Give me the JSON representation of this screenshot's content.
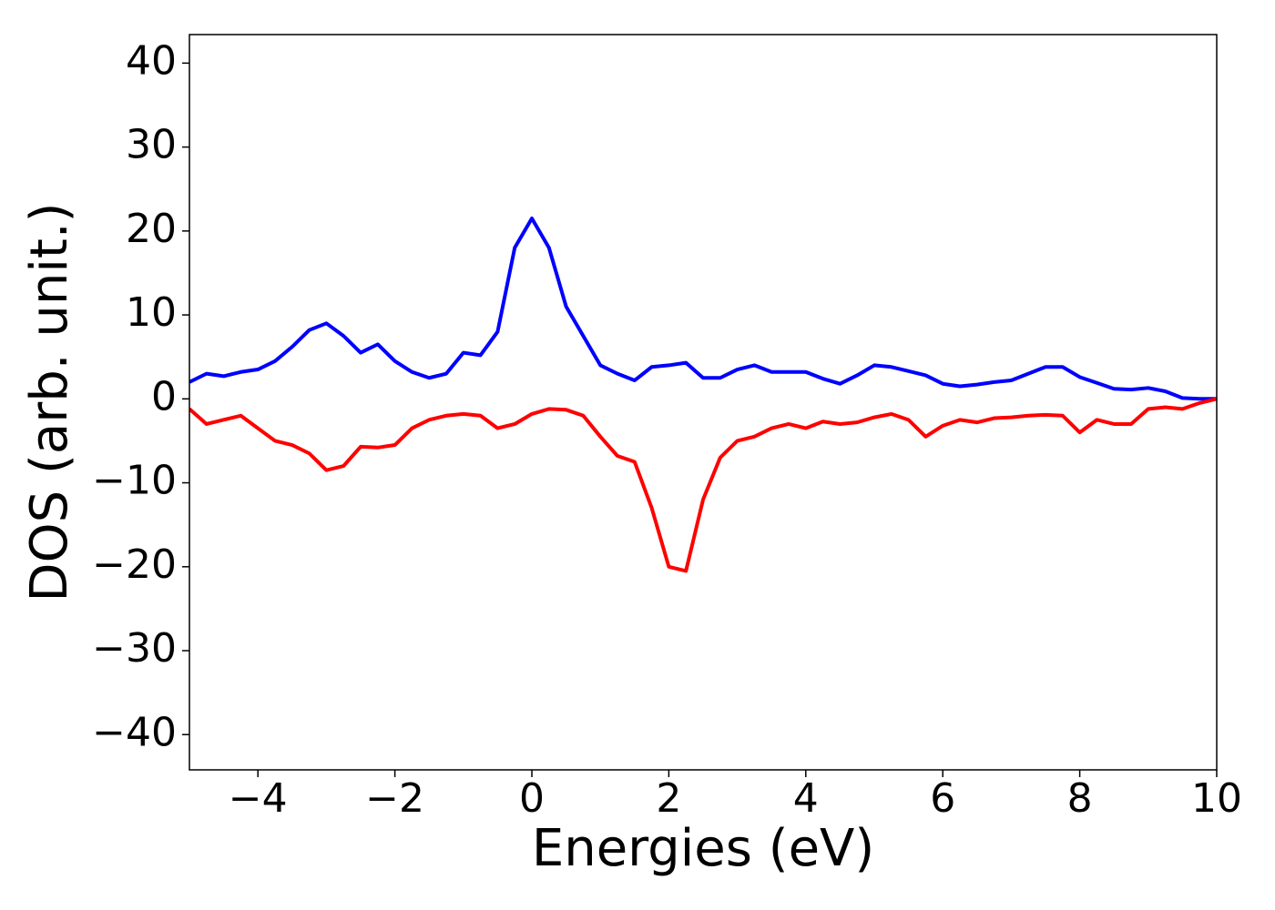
{
  "chart_data": {
    "type": "line",
    "xlabel": "Energies (eV)",
    "ylabel": "DOS (arb. unit.)",
    "x": [
      -5,
      -4.75,
      -4.5,
      -4.25,
      -4,
      -3.75,
      -3.5,
      -3.25,
      -3,
      -2.75,
      -2.5,
      -2.25,
      -2,
      -1.75,
      -1.5,
      -1.25,
      -1,
      -0.75,
      -0.5,
      -0.25,
      0,
      0.25,
      0.5,
      0.75,
      1,
      1.25,
      1.5,
      1.75,
      2,
      2.25,
      2.5,
      2.75,
      3,
      3.25,
      3.5,
      3.75,
      4,
      4.25,
      4.5,
      4.75,
      5,
      5.25,
      5.5,
      5.75,
      6,
      6.25,
      6.5,
      6.75,
      7,
      7.25,
      7.5,
      7.75,
      8,
      8.25,
      8.5,
      8.75,
      9,
      9.25,
      9.5,
      9.75,
      10
    ],
    "series": [
      {
        "color": "#0000ff",
        "values": [
          2,
          3,
          2.7,
          3.2,
          3.5,
          4.5,
          6.2,
          8.2,
          9,
          7.5,
          5.5,
          6.5,
          4.5,
          3.2,
          2.5,
          3,
          5.5,
          5.2,
          8,
          18,
          21.5,
          18,
          11,
          7.5,
          4,
          3,
          2.2,
          3.8,
          4,
          4.3,
          2.5,
          2.5,
          3.5,
          4,
          3.2,
          3.2,
          3.2,
          2.4,
          1.8,
          2.8,
          4,
          3.8,
          3.3,
          2.8,
          1.8,
          1.5,
          1.7,
          2,
          2.2,
          3,
          3.8,
          3.8,
          2.6,
          1.9,
          1.2,
          1.1,
          1.3,
          0.9,
          0.1,
          0,
          0
        ]
      },
      {
        "color": "#ff0000",
        "values": [
          -1.2,
          -3,
          -2.5,
          -2,
          -3.5,
          -5,
          -5.5,
          -6.5,
          -8.5,
          -8,
          -5.7,
          -5.8,
          -5.5,
          -3.5,
          -2.5,
          -2,
          -1.8,
          -2,
          -3.5,
          -3,
          -1.8,
          -1.2,
          -1.3,
          -2,
          -4.5,
          -6.8,
          -7.5,
          -13,
          -20,
          -20.5,
          -12,
          -7,
          -5,
          -4.5,
          -3.5,
          -3,
          -3.5,
          -2.7,
          -3,
          -2.8,
          -2.2,
          -1.8,
          -2.5,
          -4.5,
          -3.2,
          -2.5,
          -2.8,
          -2.3,
          -2.2,
          -2,
          -1.9,
          -2,
          -4,
          -2.5,
          -3,
          -3,
          -1.2,
          -1,
          -1.2,
          -0.5,
          0
        ]
      }
    ],
    "xlim": [
      -5,
      10
    ],
    "xticks": [
      {
        "value": -4,
        "label": "−4"
      },
      {
        "value": -2,
        "label": "−2"
      },
      0,
      2,
      4,
      6,
      8,
      10
    ],
    "ylim": [
      -44.2,
      43.4
    ],
    "yticks": [
      {
        "value": -40,
        "label": "−40"
      },
      {
        "value": -30,
        "label": "−30"
      },
      {
        "value": -20,
        "label": "−20"
      },
      {
        "value": -10,
        "label": "−10"
      },
      0,
      10,
      20,
      30,
      40
    ]
  }
}
